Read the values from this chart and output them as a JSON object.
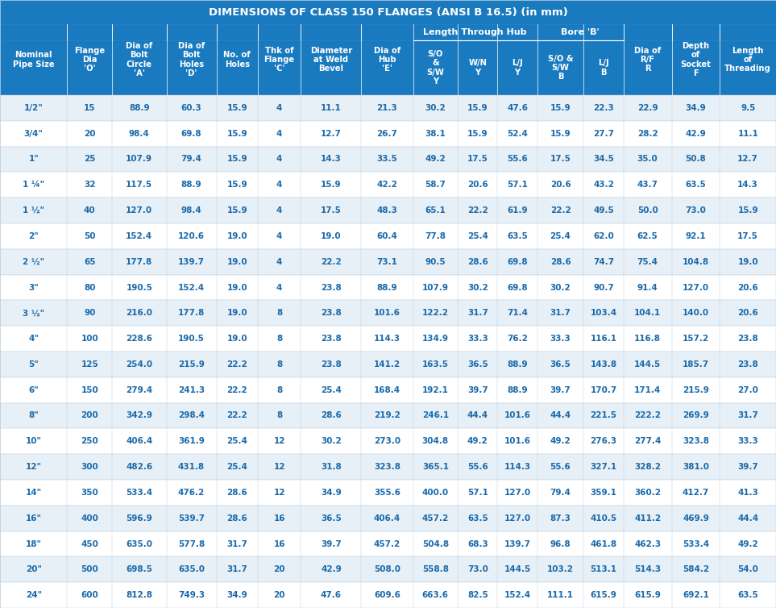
{
  "title": "DIMENSIONS OF CLASS 150 FLANGES (ANSI B 16.5) (in mm)",
  "header_bg": "#1a7abf",
  "header_text_color": "#ffffff",
  "row_bg_odd": "#e8f0f7",
  "row_bg_even": "#ffffff",
  "row_text_color": "#1a6aab",
  "grid_color": "#bbccdd",
  "rows": [
    [
      "1/2\"",
      "15",
      "88.9",
      "60.3",
      "15.9",
      "4",
      "11.1",
      "21.3",
      "30.2",
      "15.9",
      "47.6",
      "15.9",
      "22.3",
      "22.9",
      "34.9",
      "9.5",
      "15.9"
    ],
    [
      "3/4\"",
      "20",
      "98.4",
      "69.8",
      "15.9",
      "4",
      "12.7",
      "26.7",
      "38.1",
      "15.9",
      "52.4",
      "15.9",
      "27.7",
      "28.2",
      "42.9",
      "11.1",
      "15.9"
    ],
    [
      "1\"",
      "25",
      "107.9",
      "79.4",
      "15.9",
      "4",
      "14.3",
      "33.5",
      "49.2",
      "17.5",
      "55.6",
      "17.5",
      "34.5",
      "35.0",
      "50.8",
      "12.7",
      "17.5"
    ],
    [
      "1 ¼\"",
      "32",
      "117.5",
      "88.9",
      "15.9",
      "4",
      "15.9",
      "42.2",
      "58.7",
      "20.6",
      "57.1",
      "20.6",
      "43.2",
      "43.7",
      "63.5",
      "14.3",
      "20.6"
    ],
    [
      "1 ½\"",
      "40",
      "127.0",
      "98.4",
      "15.9",
      "4",
      "17.5",
      "48.3",
      "65.1",
      "22.2",
      "61.9",
      "22.2",
      "49.5",
      "50.0",
      "73.0",
      "15.9",
      "22.2"
    ],
    [
      "2\"",
      "50",
      "152.4",
      "120.6",
      "19.0",
      "4",
      "19.0",
      "60.4",
      "77.8",
      "25.4",
      "63.5",
      "25.4",
      "62.0",
      "62.5",
      "92.1",
      "17.5",
      "25.4"
    ],
    [
      "2 ½\"",
      "65",
      "177.8",
      "139.7",
      "19.0",
      "4",
      "22.2",
      "73.1",
      "90.5",
      "28.6",
      "69.8",
      "28.6",
      "74.7",
      "75.4",
      "104.8",
      "19.0",
      "28.6"
    ],
    [
      "3\"",
      "80",
      "190.5",
      "152.4",
      "19.0",
      "4",
      "23.8",
      "88.9",
      "107.9",
      "30.2",
      "69.8",
      "30.2",
      "90.7",
      "91.4",
      "127.0",
      "20.6",
      "30.2"
    ],
    [
      "3 ½\"",
      "90",
      "216.0",
      "177.8",
      "19.0",
      "8",
      "23.8",
      "101.6",
      "122.2",
      "31.7",
      "71.4",
      "31.7",
      "103.4",
      "104.1",
      "140.0",
      "20.6",
      "31.7"
    ],
    [
      "4\"",
      "100",
      "228.6",
      "190.5",
      "19.0",
      "8",
      "23.8",
      "114.3",
      "134.9",
      "33.3",
      "76.2",
      "33.3",
      "116.1",
      "116.8",
      "157.2",
      "23.8",
      "33.3"
    ],
    [
      "5\"",
      "125",
      "254.0",
      "215.9",
      "22.2",
      "8",
      "23.8",
      "141.2",
      "163.5",
      "36.5",
      "88.9",
      "36.5",
      "143.8",
      "144.5",
      "185.7",
      "23.8",
      "36.5"
    ],
    [
      "6\"",
      "150",
      "279.4",
      "241.3",
      "22.2",
      "8",
      "25.4",
      "168.4",
      "192.1",
      "39.7",
      "88.9",
      "39.7",
      "170.7",
      "171.4",
      "215.9",
      "27.0",
      "39.7"
    ],
    [
      "8\"",
      "200",
      "342.9",
      "298.4",
      "22.2",
      "8",
      "28.6",
      "219.2",
      "246.1",
      "44.4",
      "101.6",
      "44.4",
      "221.5",
      "222.2",
      "269.9",
      "31.7",
      "44.4"
    ],
    [
      "10\"",
      "250",
      "406.4",
      "361.9",
      "25.4",
      "12",
      "30.2",
      "273.0",
      "304.8",
      "49.2",
      "101.6",
      "49.2",
      "276.3",
      "277.4",
      "323.8",
      "33.3",
      "49.2"
    ],
    [
      "12\"",
      "300",
      "482.6",
      "431.8",
      "25.4",
      "12",
      "31.8",
      "323.8",
      "365.1",
      "55.6",
      "114.3",
      "55.6",
      "327.1",
      "328.2",
      "381.0",
      "39.7",
      "55.6"
    ],
    [
      "14\"",
      "350",
      "533.4",
      "476.2",
      "28.6",
      "12",
      "34.9",
      "355.6",
      "400.0",
      "57.1",
      "127.0",
      "79.4",
      "359.1",
      "360.2",
      "412.7",
      "41.3",
      "57.1"
    ],
    [
      "16\"",
      "400",
      "596.9",
      "539.7",
      "28.6",
      "16",
      "36.5",
      "406.4",
      "457.2",
      "63.5",
      "127.0",
      "87.3",
      "410.5",
      "411.2",
      "469.9",
      "44.4",
      "63.5"
    ],
    [
      "18\"",
      "450",
      "635.0",
      "577.8",
      "31.7",
      "16",
      "39.7",
      "457.2",
      "504.8",
      "68.3",
      "139.7",
      "96.8",
      "461.8",
      "462.3",
      "533.4",
      "49.2",
      "68.3"
    ],
    [
      "20\"",
      "500",
      "698.5",
      "635.0",
      "31.7",
      "20",
      "42.9",
      "508.0",
      "558.8",
      "73.0",
      "144.5",
      "103.2",
      "513.1",
      "514.3",
      "584.2",
      "54.0",
      "73.0"
    ],
    [
      "24\"",
      "600",
      "812.8",
      "749.3",
      "34.9",
      "20",
      "47.6",
      "609.6",
      "663.6",
      "82.5",
      "152.4",
      "111.1",
      "615.9",
      "615.9",
      "692.1",
      "63.5",
      "82.5"
    ]
  ],
  "col_labels": [
    "Nominal\nPipe Size",
    "Flange\nDia\n'O'",
    "Dia of\nBolt\nCircle\n'A'",
    "Dia of\nBolt\nHoles\n'D'",
    "No. of\nHoles",
    "Thk of\nFlange\n'C'",
    "Diameter\nat Weld\nBevel",
    "Dia of\nHub\n'E'",
    "S/O\n&\nS/W\nY",
    "W/N\nY",
    "L/J\nY",
    "S/O &\nS/W\nB",
    "L/J\nB",
    "Dia of\nR/F\nR",
    "Depth\nof\nSocket\nF",
    "Length\nof\nThreading"
  ],
  "col_props": [
    0.78,
    0.52,
    0.63,
    0.58,
    0.48,
    0.5,
    0.7,
    0.6,
    0.52,
    0.46,
    0.46,
    0.54,
    0.46,
    0.56,
    0.56,
    0.65
  ]
}
